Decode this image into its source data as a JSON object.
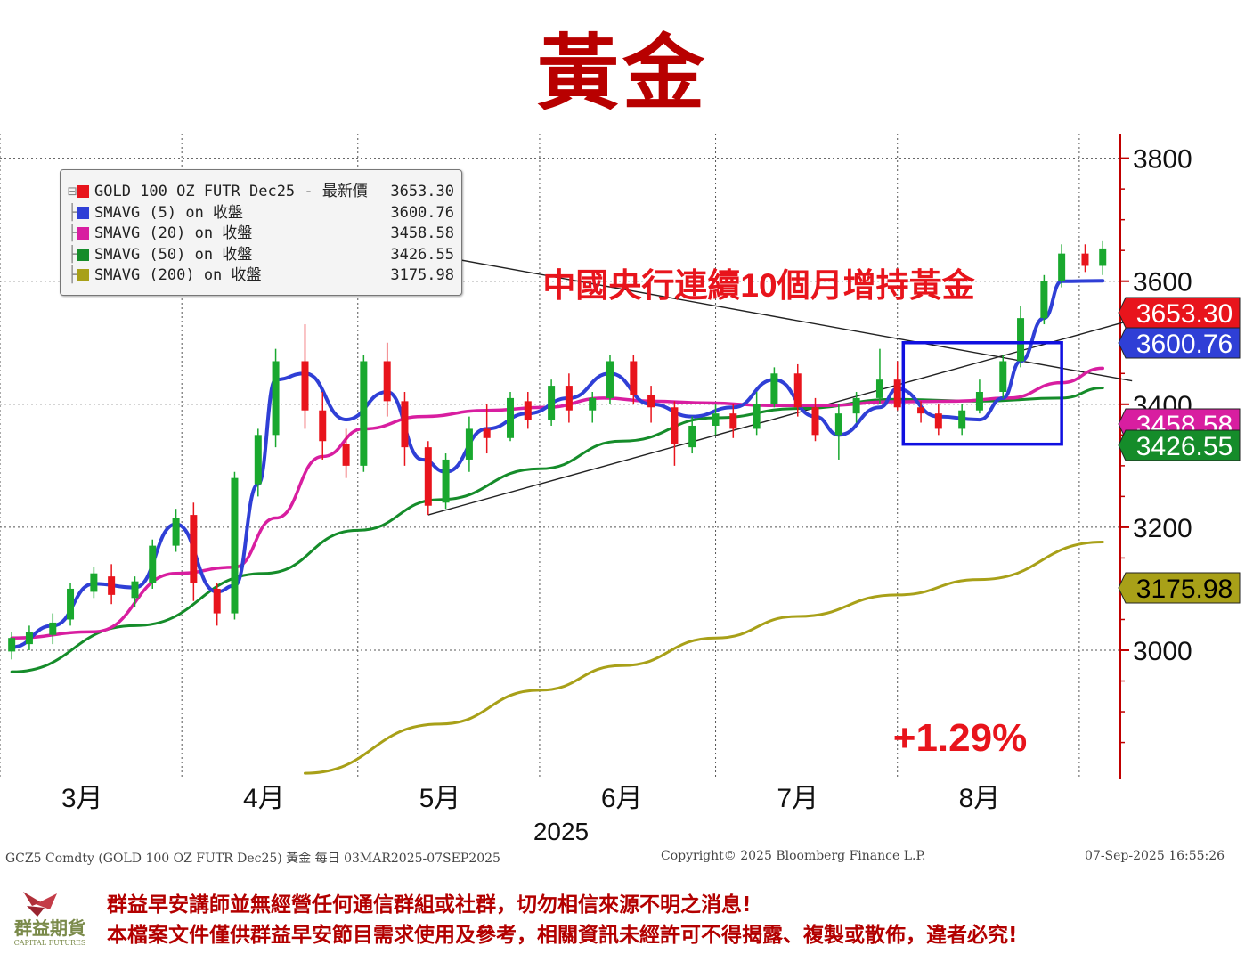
{
  "page": {
    "title": "黃金",
    "annotation": "中國央行連續10個月增持黃金",
    "change_label": "+1.29%",
    "footer_left": "GCZ5 Comdty (GOLD 100 OZ FUTR  Dec25) 黃金   每日 03MAR2025-07SEP2025",
    "footer_center": "Copyright© 2025 Bloomberg Finance L.P.",
    "footer_right": "07-Sep-2025 16:55:26",
    "notice_line1": "群益早安講師並無經營任何通信群組或社群，切勿相信來源不明之消息!",
    "notice_line2": "本檔案文件僅供群益早安節目需求使用及參考，相關資訊未經許可不得揭露、複製或散佈，違者必究!",
    "logo_name": "群益期貨",
    "logo_sub": "CAPITAL FUTURES"
  },
  "legend": [
    {
      "label": "GOLD 100 OZ FUTR Dec25 - 最新價",
      "value": "3653.30",
      "color": "#e8141c"
    },
    {
      "label": "SMAVG (5)  on 收盤",
      "value": "3600.76",
      "color": "#2f3fd6"
    },
    {
      "label": "SMAVG (20)  on 收盤",
      "value": "3458.58",
      "color": "#d81ea0"
    },
    {
      "label": "SMAVG (50)  on 收盤",
      "value": "3426.55",
      "color": "#158c2a"
    },
    {
      "label": "SMAVG (200)  on 收盤",
      "value": "3175.98",
      "color": "#a8a018"
    }
  ],
  "chart_data": {
    "type": "candlestick",
    "x_range": [
      "2025-03-03",
      "2025-09-05"
    ],
    "ylim": [
      2790,
      3840
    ],
    "y_ticks": [
      3000,
      3200,
      3400,
      3600,
      3800
    ],
    "y_tick_labels": [
      "3000",
      "3200",
      "3400",
      "3600",
      "3800"
    ],
    "grid": true,
    "legend_position": "top-left",
    "month_labels": [
      "3月",
      "4月",
      "5月",
      "6月",
      "7月",
      "8月"
    ],
    "month_dates": [
      "2025-03-15",
      "2025-04-15",
      "2025-05-15",
      "2025-06-15",
      "2025-07-15",
      "2025-08-15"
    ],
    "month_boundaries": [
      "2025-03-01",
      "2025-04-01",
      "2025-05-01",
      "2025-06-01",
      "2025-07-01",
      "2025-08-01",
      "2025-09-01"
    ],
    "year_label": "2025",
    "ohlc_dates": [
      "2025-03-03",
      "2025-03-06",
      "2025-03-10",
      "2025-03-13",
      "2025-03-17",
      "2025-03-20",
      "2025-03-24",
      "2025-03-27",
      "2025-03-31",
      "2025-04-03",
      "2025-04-07",
      "2025-04-10",
      "2025-04-14",
      "2025-04-17",
      "2025-04-22",
      "2025-04-25",
      "2025-04-29",
      "2025-05-02",
      "2025-05-06",
      "2025-05-09",
      "2025-05-13",
      "2025-05-16",
      "2025-05-20",
      "2025-05-23",
      "2025-05-27",
      "2025-05-30",
      "2025-06-03",
      "2025-06-06",
      "2025-06-10",
      "2025-06-13",
      "2025-06-17",
      "2025-06-20",
      "2025-06-24",
      "2025-06-27",
      "2025-07-01",
      "2025-07-04",
      "2025-07-08",
      "2025-07-11",
      "2025-07-15",
      "2025-07-18",
      "2025-07-22",
      "2025-07-25",
      "2025-07-29",
      "2025-08-01",
      "2025-08-05",
      "2025-08-08",
      "2025-08-12",
      "2025-08-15",
      "2025-08-19",
      "2025-08-22",
      "2025-08-26",
      "2025-08-29",
      "2025-09-02",
      "2025-09-05"
    ],
    "ohlc": [
      [
        2998,
        3030,
        2985,
        3020
      ],
      [
        3010,
        3040,
        3000,
        3030
      ],
      [
        3025,
        3060,
        3010,
        3045
      ],
      [
        3050,
        3110,
        3040,
        3100
      ],
      [
        3095,
        3135,
        3085,
        3125
      ],
      [
        3120,
        3140,
        3075,
        3090
      ],
      [
        3085,
        3120,
        3070,
        3112
      ],
      [
        3110,
        3180,
        3100,
        3170
      ],
      [
        3170,
        3230,
        3160,
        3215
      ],
      [
        3220,
        3240,
        3080,
        3110
      ],
      [
        3100,
        3110,
        3040,
        3060
      ],
      [
        3060,
        3290,
        3050,
        3280
      ],
      [
        3270,
        3360,
        3250,
        3350
      ],
      [
        3350,
        3490,
        3330,
        3470
      ],
      [
        3470,
        3530,
        3360,
        3390
      ],
      [
        3390,
        3420,
        3310,
        3340
      ],
      [
        3335,
        3360,
        3280,
        3300
      ],
      [
        3300,
        3480,
        3290,
        3470
      ],
      [
        3470,
        3500,
        3380,
        3405
      ],
      [
        3405,
        3420,
        3300,
        3330
      ],
      [
        3330,
        3340,
        3220,
        3235
      ],
      [
        3240,
        3320,
        3230,
        3310
      ],
      [
        3310,
        3380,
        3290,
        3360
      ],
      [
        3360,
        3400,
        3320,
        3345
      ],
      [
        3345,
        3420,
        3340,
        3410
      ],
      [
        3405,
        3420,
        3360,
        3375
      ],
      [
        3375,
        3440,
        3365,
        3430
      ],
      [
        3430,
        3450,
        3370,
        3390
      ],
      [
        3390,
        3420,
        3370,
        3410
      ],
      [
        3410,
        3480,
        3400,
        3470
      ],
      [
        3470,
        3480,
        3400,
        3415
      ],
      [
        3415,
        3430,
        3370,
        3395
      ],
      [
        3395,
        3405,
        3300,
        3335
      ],
      [
        3330,
        3380,
        3320,
        3365
      ],
      [
        3365,
        3400,
        3350,
        3385
      ],
      [
        3385,
        3400,
        3345,
        3360
      ],
      [
        3360,
        3420,
        3350,
        3400
      ],
      [
        3400,
        3460,
        3395,
        3450
      ],
      [
        3450,
        3465,
        3380,
        3395
      ],
      [
        3395,
        3410,
        3340,
        3350
      ],
      [
        3350,
        3400,
        3310,
        3385
      ],
      [
        3385,
        3420,
        3370,
        3410
      ],
      [
        3410,
        3490,
        3400,
        3440
      ],
      [
        3440,
        3470,
        3390,
        3395
      ],
      [
        3395,
        3405,
        3370,
        3385
      ],
      [
        3385,
        3400,
        3350,
        3360
      ],
      [
        3360,
        3400,
        3350,
        3390
      ],
      [
        3390,
        3440,
        3385,
        3420
      ],
      [
        3420,
        3480,
        3410,
        3470
      ],
      [
        3470,
        3560,
        3460,
        3540
      ],
      [
        3540,
        3610,
        3530,
        3600
      ],
      [
        3600,
        3660,
        3590,
        3645
      ],
      [
        3645,
        3660,
        3615,
        3625
      ],
      [
        3625,
        3665,
        3610,
        3653.3
      ]
    ],
    "series": [
      {
        "name": "SMAVG (5)  on 收盤",
        "color": "#2f3fd6",
        "dates": [
          "2025-03-03",
          "2025-03-10",
          "2025-03-17",
          "2025-03-24",
          "2025-03-31",
          "2025-04-07",
          "2025-04-10",
          "2025-04-14",
          "2025-04-17",
          "2025-04-22",
          "2025-04-29",
          "2025-05-06",
          "2025-05-12",
          "2025-05-16",
          "2025-05-23",
          "2025-05-30",
          "2025-06-06",
          "2025-06-13",
          "2025-06-20",
          "2025-06-27",
          "2025-07-04",
          "2025-07-11",
          "2025-07-18",
          "2025-07-22",
          "2025-07-29",
          "2025-08-01",
          "2025-08-08",
          "2025-08-15",
          "2025-08-19",
          "2025-08-22",
          "2025-08-26",
          "2025-08-29",
          "2025-09-05"
        ],
        "values": [
          3005,
          3040,
          3108,
          3102,
          3205,
          3095,
          3105,
          3270,
          3440,
          3450,
          3375,
          3420,
          3310,
          3290,
          3360,
          3385,
          3410,
          3450,
          3400,
          3380,
          3395,
          3440,
          3380,
          3350,
          3395,
          3425,
          3380,
          3375,
          3410,
          3470,
          3540,
          3600,
          3600.76
        ]
      },
      {
        "name": "SMAVG (20)  on 收盤",
        "color": "#d81ea0",
        "dates": [
          "2025-03-03",
          "2025-03-17",
          "2025-03-31",
          "2025-04-10",
          "2025-04-17",
          "2025-04-25",
          "2025-05-02",
          "2025-05-12",
          "2025-05-23",
          "2025-06-02",
          "2025-06-12",
          "2025-06-20",
          "2025-06-30",
          "2025-07-10",
          "2025-07-20",
          "2025-07-31",
          "2025-08-11",
          "2025-08-20",
          "2025-08-29",
          "2025-09-05"
        ],
        "values": [
          3020,
          3030,
          3125,
          3135,
          3215,
          3315,
          3360,
          3380,
          3390,
          3395,
          3410,
          3405,
          3402,
          3398,
          3398,
          3404,
          3405,
          3410,
          3435,
          3458.58
        ]
      },
      {
        "name": "SMAVG (50)  on 收盤",
        "color": "#158c2a",
        "dates": [
          "2025-03-03",
          "2025-03-24",
          "2025-04-15",
          "2025-05-01",
          "2025-05-15",
          "2025-06-01",
          "2025-06-15",
          "2025-07-01",
          "2025-07-15",
          "2025-08-01",
          "2025-08-15",
          "2025-08-29",
          "2025-09-05"
        ],
        "values": [
          2965,
          3040,
          3125,
          3195,
          3245,
          3295,
          3340,
          3378,
          3393,
          3408,
          3405,
          3410,
          3426.55
        ]
      },
      {
        "name": "SMAVG (200)  on 收盤",
        "color": "#a8a018",
        "dates": [
          "2025-04-22",
          "2025-05-15",
          "2025-06-01",
          "2025-06-15",
          "2025-07-01",
          "2025-07-15",
          "2025-08-01",
          "2025-08-15",
          "2025-09-05"
        ],
        "values": [
          2800,
          2880,
          2935,
          2975,
          3020,
          3055,
          3090,
          3115,
          3175.98
        ]
      }
    ],
    "trendlines": [
      {
        "dates": [
          "2025-04-22",
          "2025-09-10"
        ],
        "values": [
          3680,
          3438
        ]
      },
      {
        "dates": [
          "2025-05-13",
          "2025-09-10"
        ],
        "values": [
          3220,
          3537
        ]
      }
    ],
    "highlight_box": {
      "dates": [
        "2025-08-02",
        "2025-08-29"
      ],
      "values": [
        3500,
        3335
      ]
    },
    "price_tags": [
      {
        "value": "3653.30",
        "bg": "#e8141c",
        "fg": "#ffffff"
      },
      {
        "value": "3600.76",
        "bg": "#2f3fd6",
        "fg": "#ffffff"
      },
      {
        "value": "3458.58",
        "bg": "#d81ea0",
        "fg": "#ffffff"
      },
      {
        "value": "3426.55",
        "bg": "#158c2a",
        "fg": "#ffffff"
      },
      {
        "value": "3175.98",
        "bg": "#a8a018",
        "fg": "#000000"
      }
    ]
  }
}
